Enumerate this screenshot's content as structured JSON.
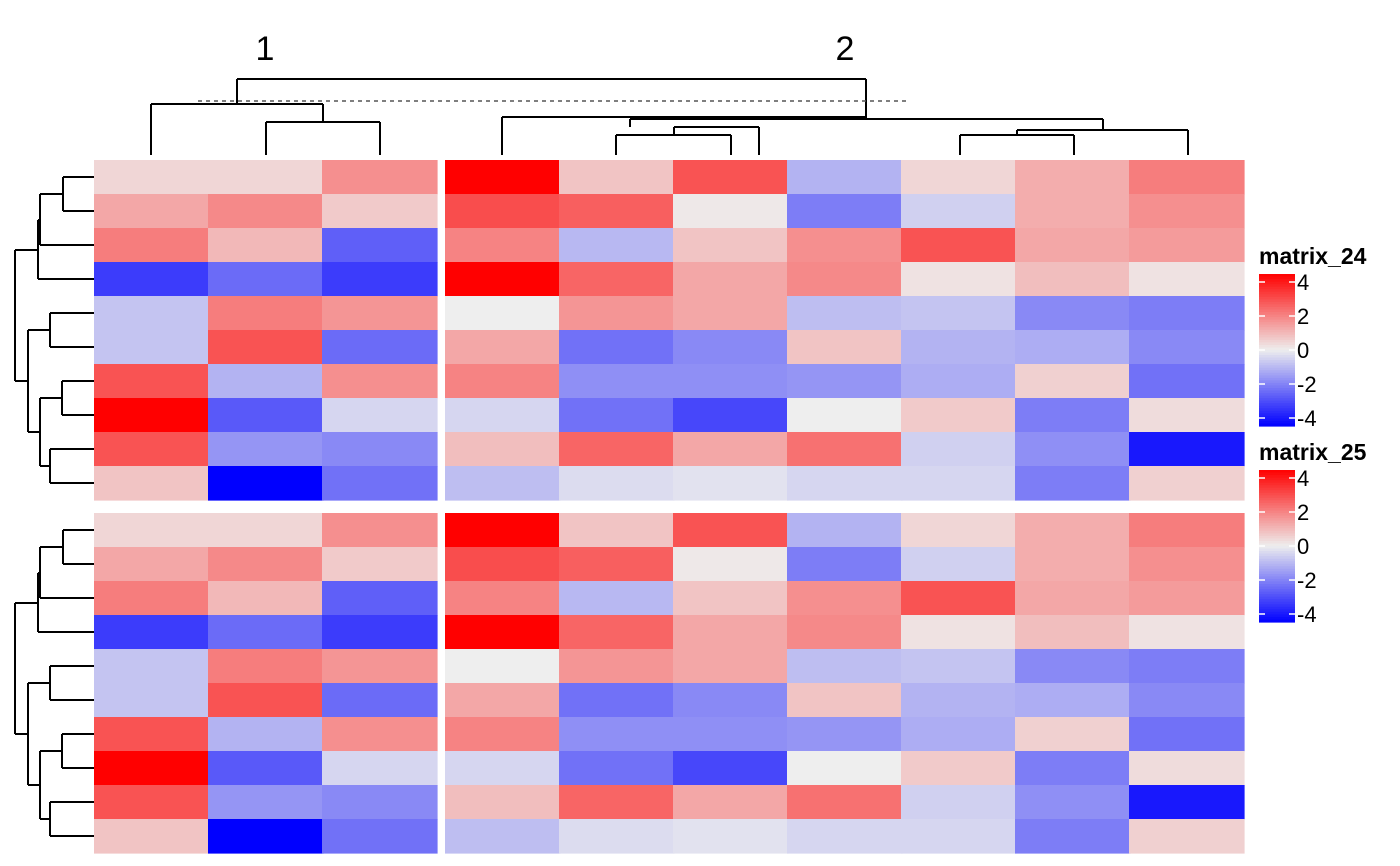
{
  "chart_data": {
    "type": "heatmap",
    "column_split_labels": [
      "1",
      "2"
    ],
    "column_groups": [
      3,
      7
    ],
    "row_groups": [
      10
    ],
    "color_scale": {
      "stops": [
        -4,
        0,
        4
      ],
      "colors": [
        "#0000FF",
        "#EEEEEE",
        "#FF0000"
      ]
    },
    "heatmaps": [
      {
        "name": "matrix_24",
        "values": [
          [
            0.4,
            0.4,
            1.6,
            4.0,
            0.7,
            2.6,
            -1.0,
            0.4,
            1.1,
            1.9
          ],
          [
            1.2,
            1.7,
            0.6,
            2.7,
            2.4,
            0.1,
            -1.9,
            -0.5,
            1.1,
            1.6
          ],
          [
            1.9,
            0.9,
            -2.4,
            1.8,
            -0.9,
            0.7,
            1.6,
            2.6,
            1.2,
            1.4
          ],
          [
            -3.0,
            -2.2,
            -3.0,
            4.4,
            2.3,
            1.2,
            1.7,
            0.2,
            0.8,
            0.2
          ],
          [
            -0.7,
            1.9,
            1.5,
            0.0,
            1.5,
            1.2,
            -0.8,
            -0.7,
            -1.7,
            -1.9
          ],
          [
            -0.7,
            2.6,
            -2.2,
            1.2,
            -2.1,
            -1.7,
            0.7,
            -1.0,
            -1.1,
            -1.7
          ],
          [
            2.6,
            -1.0,
            1.6,
            1.8,
            -1.6,
            -1.6,
            -1.5,
            -1.1,
            0.5,
            -2.1
          ],
          [
            4.4,
            -2.5,
            -0.4,
            -0.4,
            -2.1,
            -2.8,
            0.0,
            0.6,
            -1.9,
            0.3
          ],
          [
            2.6,
            -1.5,
            -1.7,
            0.8,
            2.3,
            1.2,
            2.1,
            -0.5,
            -1.6,
            -3.6
          ],
          [
            0.7,
            -4.4,
            -2.1,
            -0.8,
            -0.3,
            -0.2,
            -0.4,
            -0.4,
            -1.9,
            0.5
          ]
        ]
      },
      {
        "name": "matrix_25",
        "values": [
          [
            0.4,
            0.4,
            1.6,
            4.0,
            0.7,
            2.6,
            -1.0,
            0.4,
            1.1,
            1.9
          ],
          [
            1.2,
            1.7,
            0.6,
            2.7,
            2.4,
            0.1,
            -1.9,
            -0.5,
            1.1,
            1.6
          ],
          [
            1.9,
            0.9,
            -2.4,
            1.8,
            -0.9,
            0.7,
            1.6,
            2.6,
            1.2,
            1.4
          ],
          [
            -3.0,
            -2.2,
            -3.0,
            4.4,
            2.3,
            1.2,
            1.7,
            0.2,
            0.8,
            0.2
          ],
          [
            -0.7,
            1.9,
            1.5,
            0.0,
            1.5,
            1.2,
            -0.8,
            -0.7,
            -1.7,
            -1.9
          ],
          [
            -0.7,
            2.6,
            -2.2,
            1.2,
            -2.1,
            -1.7,
            0.7,
            -1.0,
            -1.1,
            -1.7
          ],
          [
            2.6,
            -1.0,
            1.6,
            1.8,
            -1.6,
            -1.6,
            -1.5,
            -1.1,
            0.5,
            -2.1
          ],
          [
            4.4,
            -2.5,
            -0.4,
            -0.4,
            -2.1,
            -2.8,
            0.0,
            0.6,
            -1.9,
            0.3
          ],
          [
            2.6,
            -1.5,
            -1.7,
            0.8,
            2.3,
            1.2,
            2.1,
            -0.5,
            -1.6,
            -3.6
          ],
          [
            0.7,
            -4.4,
            -2.1,
            -0.8,
            -0.3,
            -0.2,
            -0.4,
            -0.4,
            -1.9,
            0.5
          ]
        ]
      }
    ],
    "legends": [
      {
        "title": "matrix_24",
        "ticks": [
          "4",
          "2",
          "0",
          "-2",
          "-4"
        ]
      },
      {
        "title": "matrix_25",
        "ticks": [
          "4",
          "2",
          "0",
          "-2",
          "-4"
        ]
      }
    ]
  }
}
